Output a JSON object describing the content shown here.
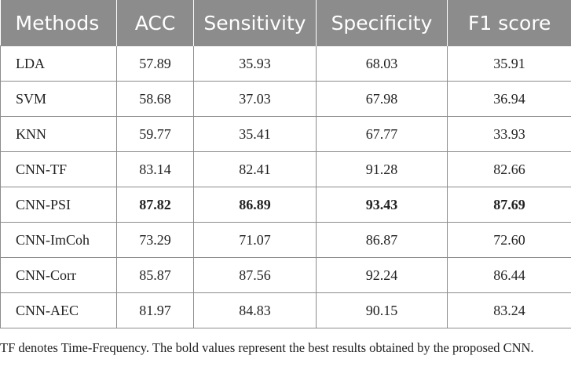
{
  "table": {
    "headers": [
      "Methods",
      "ACC",
      "Sensitivity",
      "Specificity",
      "F1 score"
    ],
    "rows": [
      {
        "method": "LDA",
        "acc": "57.89",
        "sensitivity": "35.93",
        "specificity": "68.03",
        "f1": "35.91"
      },
      {
        "method": "SVM",
        "acc": "58.68",
        "sensitivity": "37.03",
        "specificity": "67.98",
        "f1": "36.94"
      },
      {
        "method": "KNN",
        "acc": "59.77",
        "sensitivity": "35.41",
        "specificity": "67.77",
        "f1": "33.93"
      },
      {
        "method": "CNN-TF",
        "acc": "83.14",
        "sensitivity": "82.41",
        "specificity": "91.28",
        "f1": "82.66"
      },
      {
        "method": "CNN-PSI",
        "acc": "87.82",
        "sensitivity": "86.89",
        "specificity": "93.43",
        "f1": "87.69"
      },
      {
        "method": "CNN-ImCoh",
        "acc": "73.29",
        "sensitivity": "71.07",
        "specificity": "86.87",
        "f1": "72.60"
      },
      {
        "method": "CNN-Corr",
        "acc": "85.87",
        "sensitivity": "87.56",
        "specificity": "92.24",
        "f1": "86.44"
      },
      {
        "method": "CNN-AEC",
        "acc": "81.97",
        "sensitivity": "84.83",
        "specificity": "90.15",
        "f1": "83.24"
      }
    ]
  },
  "footnote": "TF denotes Time-Frequency. The bold values represent the best results obtained by the proposed CNN.",
  "colors": {
    "header_bg": "#8c8c8c",
    "header_text": "#ffffff",
    "border": "#8c8c8c"
  }
}
